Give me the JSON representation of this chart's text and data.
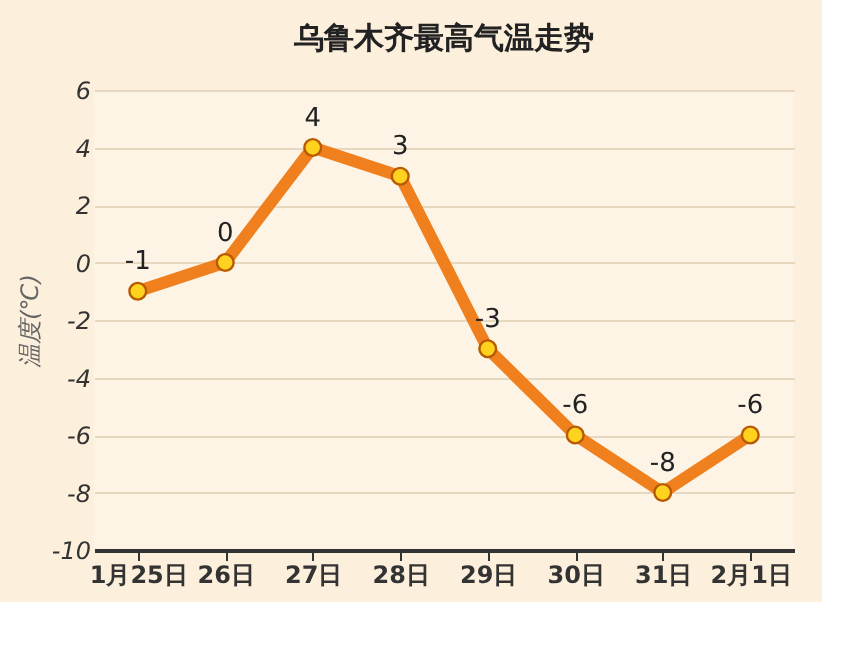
{
  "chart_data": {
    "type": "line",
    "title": "乌鲁木齐最高气温走势",
    "ylabel": "温度(℃)",
    "categories": [
      "1月25日",
      "26日",
      "27日",
      "28日",
      "29日",
      "30日",
      "31日",
      "2月1日"
    ],
    "series": [
      {
        "color": "#f0801e",
        "values": [
          -1,
          0,
          4,
          3,
          -3,
          -6,
          -8,
          -6
        ]
      }
    ],
    "ylim": [
      -10,
      6
    ],
    "yticks": [
      -10,
      -8,
      -6,
      -4,
      -2,
      0,
      2,
      4,
      6
    ],
    "grid": "y",
    "marker": "circle",
    "line_style": "solid",
    "data_labels": true,
    "legend": false
  }
}
